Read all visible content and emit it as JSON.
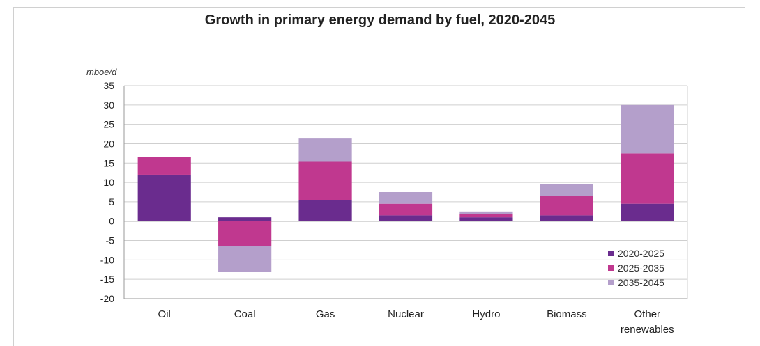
{
  "chart_data": {
    "type": "bar",
    "stacked": true,
    "title": "Growth in primary energy demand by fuel, 2020-2045",
    "ylabel": "mboe/d",
    "xlabel": "",
    "ylim": [
      -20,
      35
    ],
    "yticks": [
      35,
      30,
      25,
      20,
      15,
      10,
      5,
      0,
      -5,
      -10,
      -15,
      -20
    ],
    "categories": [
      [
        "Oil"
      ],
      [
        "Coal"
      ],
      [
        "Gas"
      ],
      [
        "Nuclear"
      ],
      [
        "Hydro"
      ],
      [
        "Biomass"
      ],
      [
        "Other",
        "renewables"
      ]
    ],
    "series": [
      {
        "name": "2020-2025",
        "color": "#6a2c8e",
        "values": [
          12,
          1,
          5.5,
          1.5,
          1,
          1.5,
          4.5
        ]
      },
      {
        "name": "2025-2035",
        "color": "#c0388f",
        "values": [
          4.5,
          -6.5,
          10,
          3,
          0.8,
          5,
          13
        ]
      },
      {
        "name": "2035-2045",
        "color": "#b49fcb",
        "values": [
          0,
          -6.5,
          6,
          3,
          0.7,
          3,
          12.5
        ]
      }
    ],
    "grid": true,
    "legend_position": "bottom-right"
  }
}
